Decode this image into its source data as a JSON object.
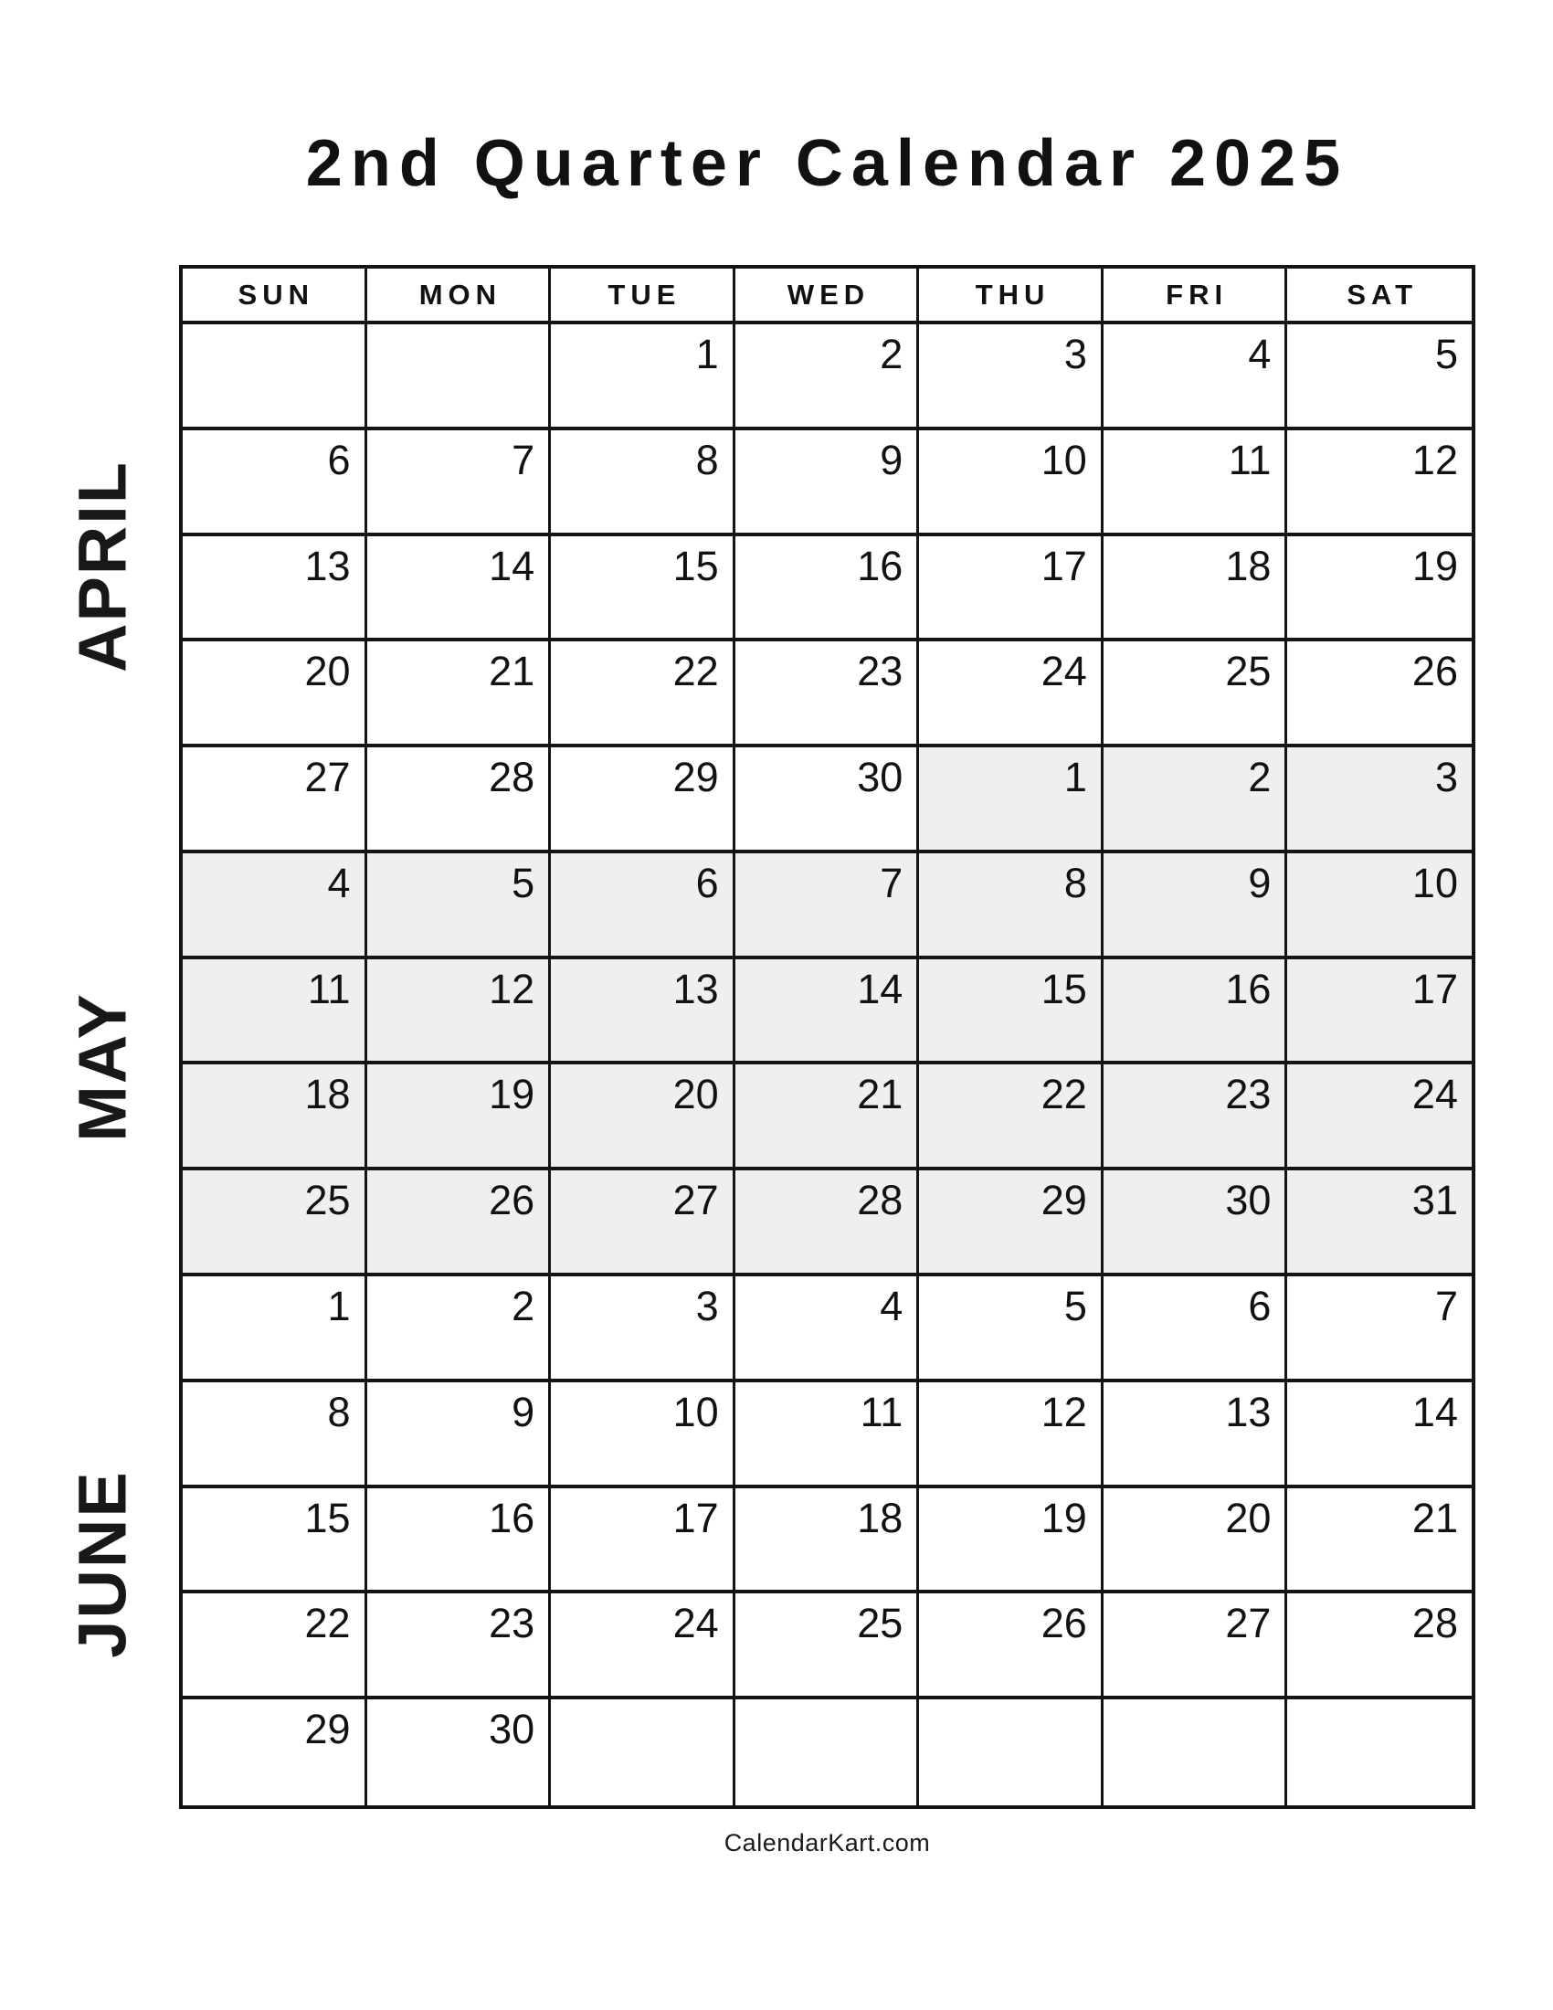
{
  "page": {
    "title": "2nd Quarter Calendar 2025",
    "footer": "CalendarKart.com"
  },
  "calendar": {
    "weekdays": [
      "SUN",
      "MON",
      "TUE",
      "WED",
      "THU",
      "FRI",
      "SAT"
    ],
    "month_labels": {
      "april": "APRIL",
      "may": "MAY",
      "june": "JUNE"
    },
    "rows": [
      {
        "month": "april",
        "shaded": [
          0,
          0,
          0,
          0,
          0,
          0,
          0
        ],
        "days": [
          "",
          "",
          "1",
          "2",
          "3",
          "4",
          "5"
        ]
      },
      {
        "month": "april",
        "shaded": [
          0,
          0,
          0,
          0,
          0,
          0,
          0
        ],
        "days": [
          "6",
          "7",
          "8",
          "9",
          "10",
          "11",
          "12"
        ]
      },
      {
        "month": "april",
        "shaded": [
          0,
          0,
          0,
          0,
          0,
          0,
          0
        ],
        "days": [
          "13",
          "14",
          "15",
          "16",
          "17",
          "18",
          "19"
        ]
      },
      {
        "month": "april",
        "shaded": [
          0,
          0,
          0,
          0,
          0,
          0,
          0
        ],
        "days": [
          "20",
          "21",
          "22",
          "23",
          "24",
          "25",
          "26"
        ]
      },
      {
        "month": "april-may",
        "shaded": [
          0,
          0,
          0,
          0,
          1,
          1,
          1
        ],
        "days": [
          "27",
          "28",
          "29",
          "30",
          "1",
          "2",
          "3"
        ]
      },
      {
        "month": "may",
        "shaded": [
          1,
          1,
          1,
          1,
          1,
          1,
          1
        ],
        "days": [
          "4",
          "5",
          "6",
          "7",
          "8",
          "9",
          "10"
        ]
      },
      {
        "month": "may",
        "shaded": [
          1,
          1,
          1,
          1,
          1,
          1,
          1
        ],
        "days": [
          "11",
          "12",
          "13",
          "14",
          "15",
          "16",
          "17"
        ]
      },
      {
        "month": "may",
        "shaded": [
          1,
          1,
          1,
          1,
          1,
          1,
          1
        ],
        "days": [
          "18",
          "19",
          "20",
          "21",
          "22",
          "23",
          "24"
        ]
      },
      {
        "month": "may",
        "shaded": [
          1,
          1,
          1,
          1,
          1,
          1,
          1
        ],
        "days": [
          "25",
          "26",
          "27",
          "28",
          "29",
          "30",
          "31"
        ]
      },
      {
        "month": "june",
        "shaded": [
          0,
          0,
          0,
          0,
          0,
          0,
          0
        ],
        "days": [
          "1",
          "2",
          "3",
          "4",
          "5",
          "6",
          "7"
        ]
      },
      {
        "month": "june",
        "shaded": [
          0,
          0,
          0,
          0,
          0,
          0,
          0
        ],
        "days": [
          "8",
          "9",
          "10",
          "11",
          "12",
          "13",
          "14"
        ]
      },
      {
        "month": "june",
        "shaded": [
          0,
          0,
          0,
          0,
          0,
          0,
          0
        ],
        "days": [
          "15",
          "16",
          "17",
          "18",
          "19",
          "20",
          "21"
        ]
      },
      {
        "month": "june",
        "shaded": [
          0,
          0,
          0,
          0,
          0,
          0,
          0
        ],
        "days": [
          "22",
          "23",
          "24",
          "25",
          "26",
          "27",
          "28"
        ]
      },
      {
        "month": "june",
        "shaded": [
          0,
          0,
          0,
          0,
          0,
          0,
          0
        ],
        "days": [
          "29",
          "30",
          "",
          "",
          "",
          "",
          ""
        ]
      }
    ]
  },
  "colors": {
    "text": "#111111",
    "grid_line": "#141414",
    "shaded_cell": "#efefef",
    "background": "#ffffff"
  }
}
